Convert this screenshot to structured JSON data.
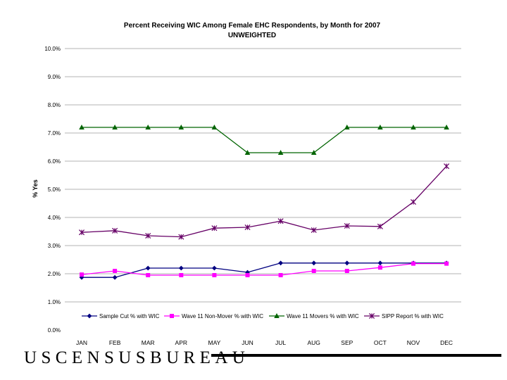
{
  "chart_data": {
    "type": "line",
    "title": "Percent Receiving WIC Among Female EHC Respondents, by Month for 2007",
    "subtitle": "UNWEIGHTED",
    "xlabel": "",
    "ylabel": "% Yes",
    "categories": [
      "JAN",
      "FEB",
      "MAR",
      "APR",
      "MAY",
      "JUN",
      "JUL",
      "AUG",
      "SEP",
      "OCT",
      "NOV",
      "DEC"
    ],
    "ylim": [
      0,
      10
    ],
    "yticks": [
      "0.0%",
      "1.0%",
      "2.0%",
      "3.0%",
      "4.0%",
      "5.0%",
      "6.0%",
      "7.0%",
      "8.0%",
      "9.0%",
      "10.0%"
    ],
    "grid": "horizontal",
    "legend": "bottom",
    "series": [
      {
        "name": "Sample Cut % with WIC",
        "color": "#000080",
        "marker": "diamond",
        "values": [
          1.87,
          1.87,
          2.2,
          2.2,
          2.2,
          2.05,
          2.38,
          2.38,
          2.38,
          2.38,
          2.38,
          2.38
        ]
      },
      {
        "name": "Wave 11 Non-Mover % with WIC",
        "color": "#ff00ff",
        "marker": "square",
        "values": [
          1.97,
          2.1,
          1.95,
          1.95,
          1.95,
          1.95,
          1.95,
          2.1,
          2.1,
          2.22,
          2.36,
          2.36
        ]
      },
      {
        "name": "Wave 11 Movers % with WIC",
        "color": "#006400",
        "marker": "triangle",
        "values": [
          7.2,
          7.2,
          7.2,
          7.2,
          7.2,
          6.3,
          6.3,
          6.3,
          7.2,
          7.2,
          7.2,
          7.2
        ]
      },
      {
        "name": "SIPP Report % with WIC",
        "color": "#660066",
        "marker": "star",
        "values": [
          3.47,
          3.53,
          3.35,
          3.31,
          3.62,
          3.65,
          3.87,
          3.55,
          3.7,
          3.68,
          4.55,
          5.82
        ]
      }
    ]
  },
  "footer": {
    "logo_text": "USCENSUSBUREAU"
  }
}
